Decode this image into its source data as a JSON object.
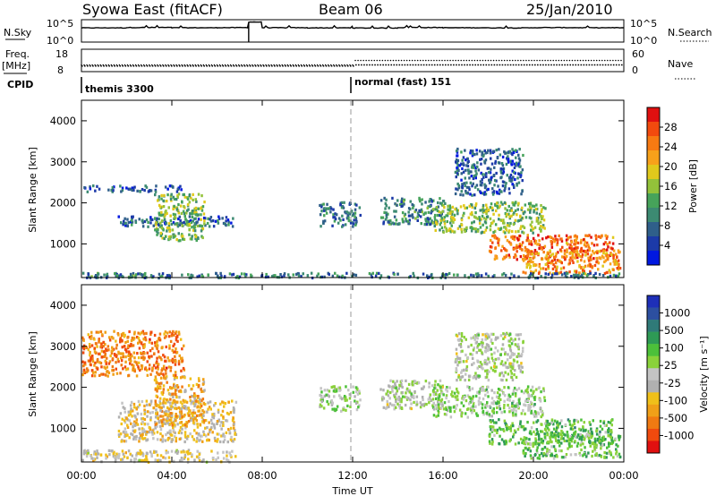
{
  "header": {
    "station": "Syowa East (fitACF)",
    "beam": "Beam 06",
    "date": "25/Jan/2010"
  },
  "summary_panels": {
    "nsky_label": "N.Sky",
    "nsky_ticks": [
      "10^5",
      "10^0"
    ],
    "nsearch_label": "N.Search",
    "nsearch_ticks": [
      "10^5",
      "10^0"
    ],
    "freq_label": "Freq.",
    "freq_unit": "[MHz]",
    "freq_ticks": [
      "18",
      "8"
    ],
    "nave_label": "Nave",
    "nave_ticks": [
      "60",
      "0"
    ],
    "cpid_label": "CPID",
    "cpid_segments": [
      {
        "label": "themis 3300",
        "start_hour": 0
      },
      {
        "label": "normal (fast) 151",
        "start_hour": 12
      }
    ]
  },
  "axes": {
    "x_label": "Time UT",
    "x_ticks": [
      "00:00",
      "04:00",
      "08:00",
      "12:00",
      "16:00",
      "20:00",
      "00:00"
    ],
    "y_label": "Slant Range [km]",
    "y_ticks": [
      "4000",
      "3000",
      "2000",
      "1000"
    ]
  },
  "colorbars": {
    "power": {
      "label": "Power [dB]",
      "ticks": [
        "28",
        "24",
        "20",
        "16",
        "12",
        "8",
        "4"
      ],
      "colors": [
        "#0018e0",
        "#1c3aa8",
        "#2f5f8a",
        "#3c8a72",
        "#46a35a",
        "#93c23a",
        "#e0c91c",
        "#f7a11a",
        "#f77a12",
        "#f24a0e",
        "#e01010"
      ]
    },
    "velocity": {
      "label": "Velocity  [m s⁻¹]",
      "ticks": [
        "1000",
        "500",
        "100",
        "25",
        "-25",
        "-100",
        "-500",
        "-1000"
      ],
      "colors": [
        "#1e2fb8",
        "#2c4fa0",
        "#2f7a78",
        "#2e9a55",
        "#4cc03a",
        "#8ad23a",
        "#c4c4c4",
        "#b0b0b0",
        "#f0c01a",
        "#f0a018",
        "#f07a12",
        "#f04a0e",
        "#e01010"
      ]
    }
  },
  "chart_data": [
    {
      "type": "line",
      "title": "N.Sky / N.Search",
      "y_scale": "log",
      "ylim": [
        1,
        100000
      ],
      "x_range_hours": [
        0,
        24
      ],
      "series": [
        {
          "name": "N.Sky",
          "x": [
            0,
            2,
            4,
            6,
            7.4,
            8,
            10,
            12,
            14,
            16,
            18,
            20,
            22,
            24
          ],
          "y": [
            1500,
            1800,
            1600,
            1700,
            30000,
            1600,
            1500,
            1400,
            1800,
            1600,
            1500,
            1700,
            1600,
            1500
          ]
        }
      ]
    },
    {
      "type": "scatter",
      "title": "Freq. / Nave",
      "x_range_hours": [
        0,
        24
      ],
      "series": [
        {
          "name": "Freq. [MHz]",
          "x": [
            0,
            4,
            8,
            12,
            12.1,
            16,
            20,
            24
          ],
          "y": [
            10.5,
            10.5,
            10.5,
            10.5,
            11.0,
            11.0,
            11.0,
            11.0
          ]
        },
        {
          "name": "Nave",
          "x": [
            0,
            4,
            8,
            11.9,
            12.1,
            16,
            20,
            24
          ],
          "y": [
            18,
            18,
            18,
            18,
            30,
            30,
            30,
            30
          ]
        }
      ]
    },
    {
      "type": "heatmap",
      "title": "Power [dB]",
      "xlim": [
        0,
        24
      ],
      "ylim": [
        180,
        4500
      ],
      "zlim": [
        0,
        30
      ],
      "regions": [
        {
          "x": [
            0,
            3.0
          ],
          "y": [
            200,
            320
          ],
          "z": 10
        },
        {
          "x": [
            1.6,
            6.8
          ],
          "y": [
            1450,
            1700
          ],
          "z": 7
        },
        {
          "x": [
            3.2,
            5.4
          ],
          "y": [
            1100,
            2250
          ],
          "z": 14
        },
        {
          "x": [
            0,
            4.5
          ],
          "y": [
            2300,
            2450
          ],
          "z": 6
        },
        {
          "x": [
            10.5,
            12.3
          ],
          "y": [
            1450,
            2050
          ],
          "z": 8
        },
        {
          "x": [
            13.2,
            16.0
          ],
          "y": [
            1500,
            2150
          ],
          "z": 9
        },
        {
          "x": [
            15.5,
            20.5
          ],
          "y": [
            1300,
            2050
          ],
          "z": 14
        },
        {
          "x": [
            18.0,
            23.5
          ],
          "y": [
            650,
            1250
          ],
          "z": 24
        },
        {
          "x": [
            16.5,
            19.5
          ],
          "y": [
            2200,
            3350
          ],
          "z": 6
        },
        {
          "x": [
            19.5,
            23.8
          ],
          "y": [
            300,
            900
          ],
          "z": 22
        },
        {
          "x": [
            0,
            24
          ],
          "y": [
            200,
            320
          ],
          "z": 8
        }
      ]
    },
    {
      "type": "heatmap",
      "title": "Velocity [m s-1]",
      "xlim": [
        0,
        24
      ],
      "ylim": [
        180,
        4500
      ],
      "zlim": [
        -1000,
        1000
      ],
      "regions": [
        {
          "x": [
            0,
            6.8
          ],
          "y": [
            200,
            500
          ],
          "z": -150
        },
        {
          "x": [
            1.6,
            6.8
          ],
          "y": [
            700,
            1700
          ],
          "z": -250
        },
        {
          "x": [
            3.2,
            5.4
          ],
          "y": [
            1100,
            2300
          ],
          "z": -400
        },
        {
          "x": [
            0,
            4.5
          ],
          "y": [
            2300,
            3400
          ],
          "z": -600
        },
        {
          "x": [
            10.5,
            12.3
          ],
          "y": [
            1450,
            2050
          ],
          "z": 50
        },
        {
          "x": [
            13.2,
            16.0
          ],
          "y": [
            1500,
            2200
          ],
          "z": 0
        },
        {
          "x": [
            15.5,
            20.5
          ],
          "y": [
            1300,
            2050
          ],
          "z": 150
        },
        {
          "x": [
            18.0,
            23.5
          ],
          "y": [
            650,
            1250
          ],
          "z": 300
        },
        {
          "x": [
            16.5,
            19.5
          ],
          "y": [
            2200,
            3350
          ],
          "z": 0
        },
        {
          "x": [
            19.5,
            23.8
          ],
          "y": [
            300,
            900
          ],
          "z": 250
        }
      ]
    }
  ]
}
